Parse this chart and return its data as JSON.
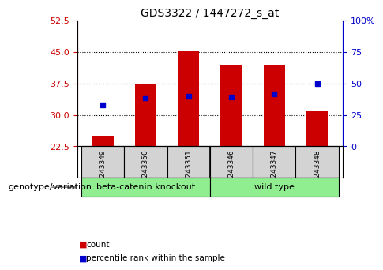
{
  "title": "GDS3322 / 1447272_s_at",
  "samples": [
    "GSM243349",
    "GSM243350",
    "GSM243351",
    "GSM243346",
    "GSM243347",
    "GSM243348"
  ],
  "count_values": [
    25.0,
    37.5,
    45.2,
    42.0,
    42.0,
    31.0
  ],
  "count_baseline": 22.5,
  "percentile_values": [
    33.0,
    38.5,
    40.0,
    39.0,
    41.5,
    50.0
  ],
  "left_ylim": [
    22.5,
    52.5
  ],
  "left_yticks": [
    22.5,
    30.0,
    37.5,
    45.0,
    52.5
  ],
  "right_ylim": [
    0,
    100
  ],
  "right_yticks": [
    0,
    25,
    50,
    75,
    100
  ],
  "right_yticklabels": [
    "0",
    "25",
    "50",
    "75",
    "100%"
  ],
  "bar_color": "#cc0000",
  "dot_color": "#0000cc",
  "group_label": "genotype/variation",
  "legend_count_label": "count",
  "legend_percentile_label": "percentile rank within the sample",
  "bar_width": 0.5,
  "background_color": "#ffffff",
  "plot_bg_color": "#ffffff",
  "tick_color_left": "#cc0000",
  "tick_color_right": "#0000cc",
  "sample_box_color": "#d3d3d3",
  "group_box_color": "#90ee90",
  "grid_dotted_ticks": [
    30.0,
    37.5,
    45.0
  ],
  "group_defs": [
    {
      "label": "beta-catenin knockout",
      "start": 0,
      "end": 2
    },
    {
      "label": "wild type",
      "start": 3,
      "end": 5
    }
  ]
}
